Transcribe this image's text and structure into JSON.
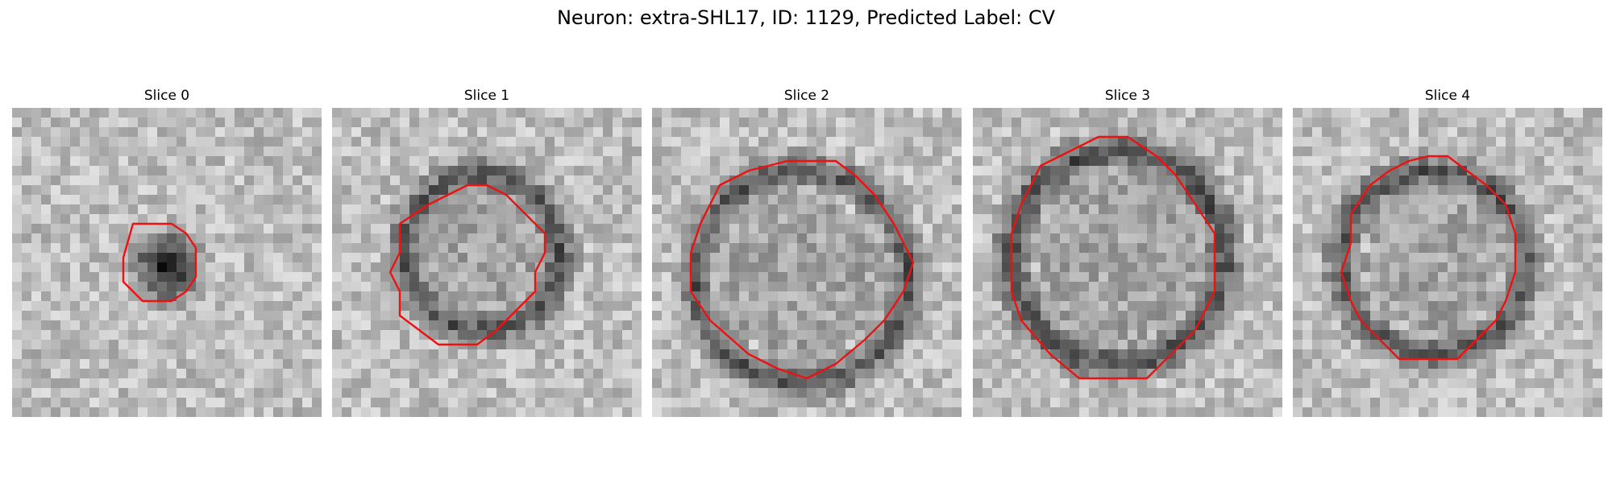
{
  "figure": {
    "title": "Neuron: extra-SHL17, ID: 1129, Predicted Label: CV"
  },
  "panels": [
    {
      "title": "Slice 0"
    },
    {
      "title": "Slice 1"
    },
    {
      "title": "Slice 2"
    },
    {
      "title": "Slice 3"
    },
    {
      "title": "Slice 4"
    }
  ],
  "colors": {
    "contour": "#ee1111",
    "background": "#ffffff"
  }
}
